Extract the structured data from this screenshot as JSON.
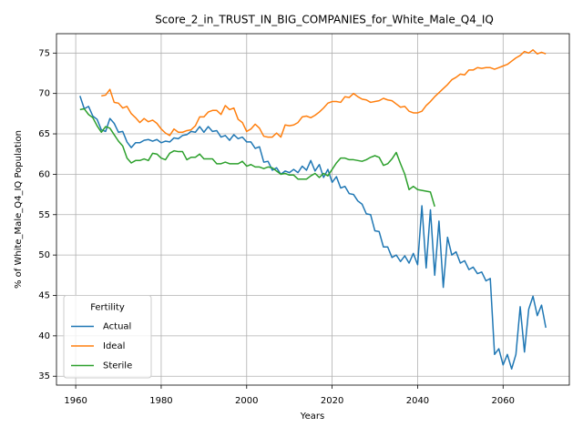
{
  "chart_data": {
    "type": "line",
    "title": "Score_2_in_TRUST_IN_BIG_COMPANIES_for_White_Male_Q4_IQ",
    "x_label": "Years",
    "y_label": "% of White_Male_Q4_IQ Population",
    "x": [
      1961,
      1962,
      1963,
      1964,
      1965,
      1966,
      1967,
      1968,
      1969,
      1970,
      1971,
      1972,
      1973,
      1974,
      1975,
      1976,
      1977,
      1978,
      1979,
      1980,
      1981,
      1982,
      1983,
      1984,
      1985,
      1986,
      1987,
      1988,
      1989,
      1990,
      1991,
      1992,
      1993,
      1994,
      1995,
      1996,
      1997,
      1998,
      1999,
      2000,
      2001,
      2002,
      2003,
      2004,
      2005,
      2006,
      2007,
      2008,
      2009,
      2010,
      2011,
      2012,
      2013,
      2014,
      2015,
      2016,
      2017,
      2018,
      2019,
      2020,
      2021,
      2022,
      2023,
      2024,
      2025,
      2026,
      2027,
      2028,
      2029,
      2030,
      2031,
      2032,
      2033,
      2034,
      2035,
      2036,
      2037,
      2038,
      2039,
      2040,
      2041,
      2042,
      2043,
      2044,
      2045,
      2046,
      2047,
      2048,
      2049,
      2050,
      2051,
      2052,
      2053,
      2054,
      2055,
      2056,
      2057,
      2058,
      2059,
      2060,
      2061,
      2062,
      2063,
      2064,
      2065,
      2066,
      2067,
      2068,
      2069,
      2070
    ],
    "series": [
      {
        "name": "Actual",
        "color": "#1f77b4",
        "values": [
          69.7,
          68.1,
          68.4,
          67.2,
          66.8,
          65.5,
          65.3,
          66.9,
          66.3,
          65.2,
          65.3,
          64.0,
          63.3,
          63.9,
          63.9,
          64.2,
          64.3,
          64.1,
          64.3,
          63.9,
          64.1,
          64.0,
          64.5,
          64.4,
          64.8,
          64.9,
          65.3,
          65.2,
          65.9,
          65.2,
          65.9,
          65.3,
          65.4,
          64.6,
          64.8,
          64.2,
          64.9,
          64.4,
          64.6,
          64.0,
          64.0,
          63.2,
          63.4,
          61.5,
          61.6,
          60.5,
          60.8,
          60.0,
          60.4,
          60.2,
          60.6,
          60.2,
          61.0,
          60.5,
          61.7,
          60.4,
          61.2,
          59.6,
          60.6,
          59.0,
          59.7,
          58.3,
          58.5,
          57.6,
          57.5,
          56.7,
          56.3,
          55.1,
          55.0,
          53.0,
          52.9,
          51.0,
          51.0,
          49.7,
          50.0,
          49.2,
          49.9,
          49.0,
          50.2,
          48.8,
          56.1,
          48.4,
          55.6,
          47.5,
          54.2,
          46.0,
          52.2,
          50.0,
          50.4,
          49.0,
          49.3,
          48.2,
          48.5,
          47.7,
          47.9,
          46.8,
          47.1,
          37.7,
          38.4,
          36.4,
          37.7,
          35.9,
          37.7,
          43.6,
          38.0,
          43.3,
          44.9,
          42.5,
          43.8,
          41.0
        ]
      },
      {
        "name": "Ideal",
        "color": "#ff7f0e",
        "values": [
          null,
          null,
          null,
          null,
          null,
          69.7,
          69.8,
          70.5,
          68.9,
          68.8,
          68.2,
          68.4,
          67.5,
          67.0,
          66.4,
          66.9,
          66.5,
          66.7,
          66.3,
          65.6,
          65.1,
          64.8,
          65.6,
          65.2,
          65.2,
          65.4,
          65.5,
          66.0,
          67.1,
          67.1,
          67.7,
          67.9,
          67.9,
          67.4,
          68.5,
          68.0,
          68.2,
          66.8,
          66.4,
          65.3,
          65.6,
          66.2,
          65.7,
          64.7,
          64.6,
          64.6,
          65.1,
          64.6,
          66.1,
          66.0,
          66.1,
          66.4,
          67.1,
          67.2,
          67.0,
          67.3,
          67.7,
          68.2,
          68.8,
          69.0,
          69.0,
          68.9,
          69.6,
          69.5,
          70.0,
          69.6,
          69.3,
          69.2,
          68.9,
          69.0,
          69.1,
          69.4,
          69.2,
          69.1,
          68.7,
          68.3,
          68.4,
          67.8,
          67.6,
          67.6,
          67.8,
          68.5,
          69.0,
          69.6,
          70.1,
          70.6,
          71.1,
          71.7,
          72.0,
          72.4,
          72.3,
          72.9,
          72.9,
          73.2,
          73.1,
          73.2,
          73.2,
          73.0,
          73.2,
          73.4,
          73.6,
          74.0,
          74.4,
          74.7,
          75.2,
          75.0,
          75.4,
          74.9,
          75.1,
          74.9
        ]
      },
      {
        "name": "Sterile",
        "color": "#2ca02c",
        "values": [
          68.0,
          68.1,
          67.4,
          67.0,
          66.0,
          65.2,
          65.9,
          65.7,
          64.9,
          64.1,
          63.5,
          62.0,
          61.4,
          61.7,
          61.7,
          61.9,
          61.7,
          62.6,
          62.5,
          62.0,
          61.8,
          62.6,
          62.9,
          62.8,
          62.8,
          61.8,
          62.1,
          62.1,
          62.5,
          61.9,
          61.9,
          61.9,
          61.3,
          61.3,
          61.5,
          61.3,
          61.3,
          61.3,
          61.6,
          61.0,
          61.2,
          60.9,
          60.9,
          60.7,
          60.9,
          60.8,
          60.4,
          60.0,
          60.1,
          59.9,
          59.9,
          59.4,
          59.4,
          59.4,
          59.8,
          60.1,
          59.6,
          60.1,
          59.8,
          60.6,
          61.4,
          62.0,
          62.0,
          61.8,
          61.8,
          61.7,
          61.6,
          61.8,
          62.1,
          62.3,
          62.1,
          61.1,
          61.3,
          61.9,
          62.7,
          61.3,
          60.0,
          58.1,
          58.5,
          58.1,
          58.0,
          57.9,
          57.8,
          56.0,
          null,
          null,
          null,
          null,
          null,
          null,
          null,
          null,
          null,
          null,
          null,
          null,
          null,
          null,
          null,
          null,
          null,
          null,
          null,
          null,
          null,
          null,
          null,
          null,
          null,
          null
        ]
      }
    ],
    "xlim": [
      1955.5,
      2075.5
    ],
    "xticks": [
      1960,
      1980,
      2000,
      2020,
      2040,
      2060
    ],
    "ylim": [
      33.9,
      77.4
    ],
    "yticks": [
      35,
      40,
      45,
      50,
      55,
      60,
      65,
      70,
      75
    ],
    "grid": true,
    "legend_title": "Fertility",
    "legend_position": "lower left"
  }
}
